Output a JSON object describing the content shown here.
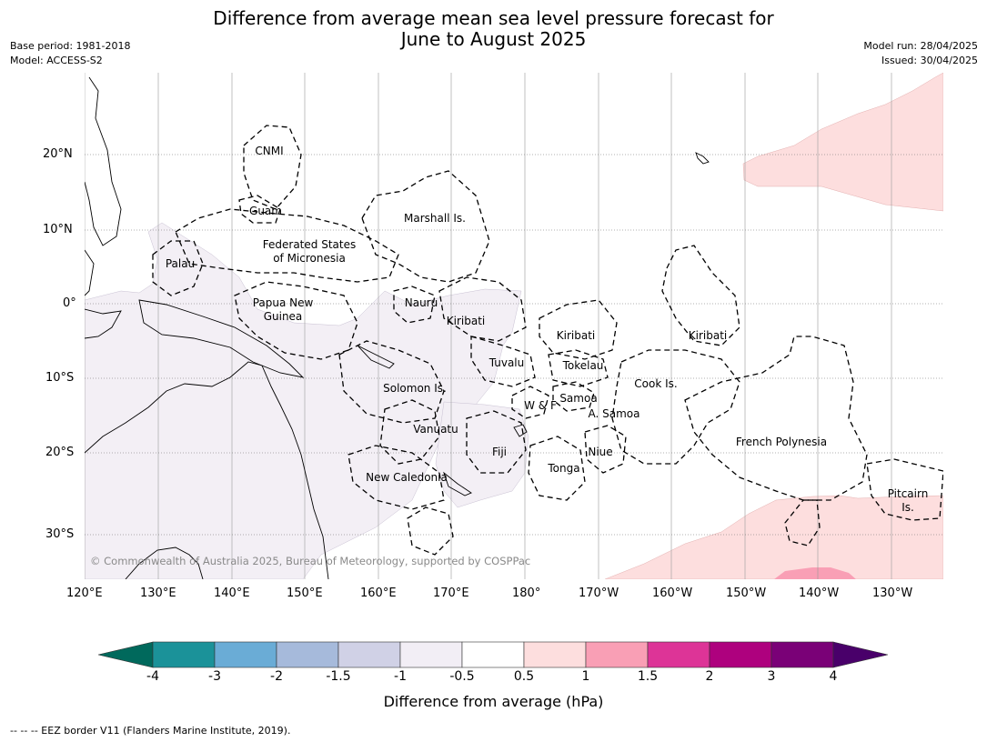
{
  "title": {
    "line1": "Difference from average mean sea level pressure forecast for",
    "line2": "June to August 2025"
  },
  "meta": {
    "base_period": "Base period: 1981-2018",
    "model": "Model: ACCESS-S2",
    "model_run": "Model run: 28/04/2025",
    "issued": "Issued: 30/04/2025"
  },
  "axes": {
    "longitude_ticks": [
      "120°E",
      "130°E",
      "140°E",
      "150°E",
      "160°E",
      "170°E",
      "180°",
      "170°W",
      "160°W",
      "150°W",
      "140°W",
      "130°W"
    ],
    "latitude_ticks": [
      "20°N",
      "10°N",
      "0°",
      "10°S",
      "20°S",
      "30°S"
    ]
  },
  "regions": [
    {
      "name": "CNMI"
    },
    {
      "name": "Guam"
    },
    {
      "name": "Marshall Is."
    },
    {
      "name": "Federated States"
    },
    {
      "name": "of Micronesia"
    },
    {
      "name": "Palau"
    },
    {
      "name": "Papua New"
    },
    {
      "name": "Guinea"
    },
    {
      "name": "Nauru"
    },
    {
      "name": "Kiribati"
    },
    {
      "name": "Kiribati"
    },
    {
      "name": "Kiribati"
    },
    {
      "name": "Tuvalu"
    },
    {
      "name": "Tokelau"
    },
    {
      "name": "Cook Is."
    },
    {
      "name": "Solomon Is."
    },
    {
      "name": "W & F"
    },
    {
      "name": "Samoa"
    },
    {
      "name": "A. Samoa"
    },
    {
      "name": "Vanuatu"
    },
    {
      "name": "Fiji"
    },
    {
      "name": "Niue"
    },
    {
      "name": "French Polynesia"
    },
    {
      "name": "Tonga"
    },
    {
      "name": "New Caledonia"
    },
    {
      "name": "Pitcairn"
    },
    {
      "name": "Is."
    }
  ],
  "copyright": "© Commonwealth of Australia 2025, Bureau of Meteorology, supported by COSPPac",
  "colorbar": {
    "label": "Difference from average (hPa)",
    "ticks": [
      "-4",
      "-3",
      "-2",
      "-1.5",
      "-1",
      "-0.5",
      "0.5",
      "1",
      "1.5",
      "2",
      "3",
      "4"
    ],
    "colors": [
      "#00695c",
      "#1b9299",
      "#6aacd6",
      "#a6badb",
      "#d0d1e6",
      "#f2eef5",
      "#ffffff",
      "#fddede",
      "#f99fb5",
      "#dd3497",
      "#ae017e",
      "#7a0177",
      "#49006a"
    ]
  },
  "footer": "--  --  -- EEZ border V11 (Flanders Marine Institute, 2019)."
}
